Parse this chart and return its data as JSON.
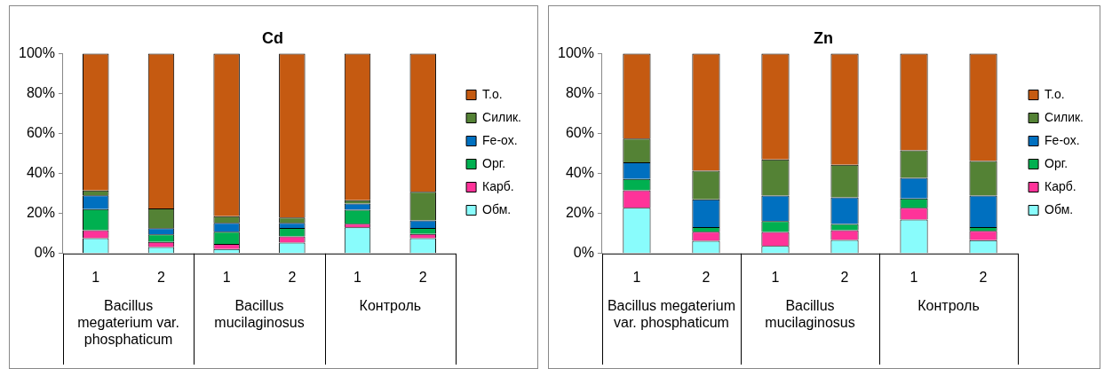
{
  "chart_data": [
    {
      "type": "bar",
      "title": "Cd",
      "stacked": true,
      "categories": [
        "1",
        "2",
        "1",
        "2",
        "1",
        "2"
      ],
      "series": [
        {
          "name": "Обм.",
          "color": "#89fcfc",
          "values": [
            7.7,
            3.2,
            2.2,
            5.5,
            13.1,
            7.7
          ]
        },
        {
          "name": "Карб.",
          "color": "#ff3399",
          "values": [
            4.0,
            2.6,
            2.6,
            3.1,
            1.8,
            2.1
          ]
        },
        {
          "name": "Орг.",
          "color": "#00b050",
          "values": [
            10.5,
            3.8,
            6.1,
            4.2,
            7.0,
            3.0
          ]
        },
        {
          "name": "Fe-ох.",
          "color": "#0070c0",
          "values": [
            6.9,
            3.1,
            4.4,
            2.5,
            3.1,
            3.8
          ]
        },
        {
          "name": "Силик.",
          "color": "#548235",
          "values": [
            2.4,
            9.9,
            3.4,
            2.7,
            1.7,
            14.3
          ]
        },
        {
          "name": "Т.о.",
          "color": "#c55a11",
          "values": [
            68.5,
            77.4,
            81.3,
            82.0,
            73.3,
            69.1
          ]
        }
      ],
      "ylim": [
        0,
        100
      ],
      "yticks": [
        {
          "value": 0,
          "label": "0%"
        },
        {
          "value": 20,
          "label": "20%"
        },
        {
          "value": 40,
          "label": "40%"
        },
        {
          "value": 60,
          "label": "60%"
        },
        {
          "value": 80,
          "label": "80%"
        },
        {
          "value": 100,
          "label": "100%"
        }
      ],
      "grid": false,
      "legend": "right",
      "annotations": [
        "Bacillus megaterium var. phosphaticum",
        "Bacillus mucilaginosus",
        "Контроль"
      ]
    },
    {
      "type": "bar",
      "title": "Zn",
      "stacked": true,
      "categories": [
        "1",
        "2",
        "1",
        "2",
        "1",
        "2"
      ],
      "series": [
        {
          "name": "Обм.",
          "color": "#89fcfc",
          "values": [
            22.9,
            6.3,
            3.8,
            6.8,
            17.0,
            6.7
          ]
        },
        {
          "name": "Карб.",
          "color": "#ff3399",
          "values": [
            8.8,
            4.6,
            7.0,
            4.9,
            5.9,
            4.6
          ]
        },
        {
          "name": "Орг.",
          "color": "#00b050",
          "values": [
            5.6,
            2.3,
            5.4,
            3.1,
            4.7,
            1.9
          ]
        },
        {
          "name": "Fe-ох.",
          "color": "#0070c0",
          "values": [
            8.3,
            13.9,
            12.8,
            13.3,
            10.3,
            15.8
          ]
        },
        {
          "name": "Силик.",
          "color": "#548235",
          "values": [
            11.9,
            14.3,
            18.1,
            16.3,
            13.7,
            17.3
          ]
        },
        {
          "name": "Т.о.",
          "color": "#c55a11",
          "values": [
            42.5,
            58.6,
            52.9,
            55.6,
            48.4,
            53.7
          ]
        }
      ],
      "ylim": [
        0,
        100
      ],
      "yticks": [
        {
          "value": 0,
          "label": "0%"
        },
        {
          "value": 20,
          "label": "20%"
        },
        {
          "value": 40,
          "label": "40%"
        },
        {
          "value": 60,
          "label": "60%"
        },
        {
          "value": 80,
          "label": "80%"
        },
        {
          "value": 100,
          "label": "100%"
        }
      ],
      "grid": false,
      "legend": "right",
      "annotations": [
        "Bacillus megaterium var. phosphaticum",
        "Bacillus mucilaginosus",
        "Контроль"
      ]
    }
  ]
}
